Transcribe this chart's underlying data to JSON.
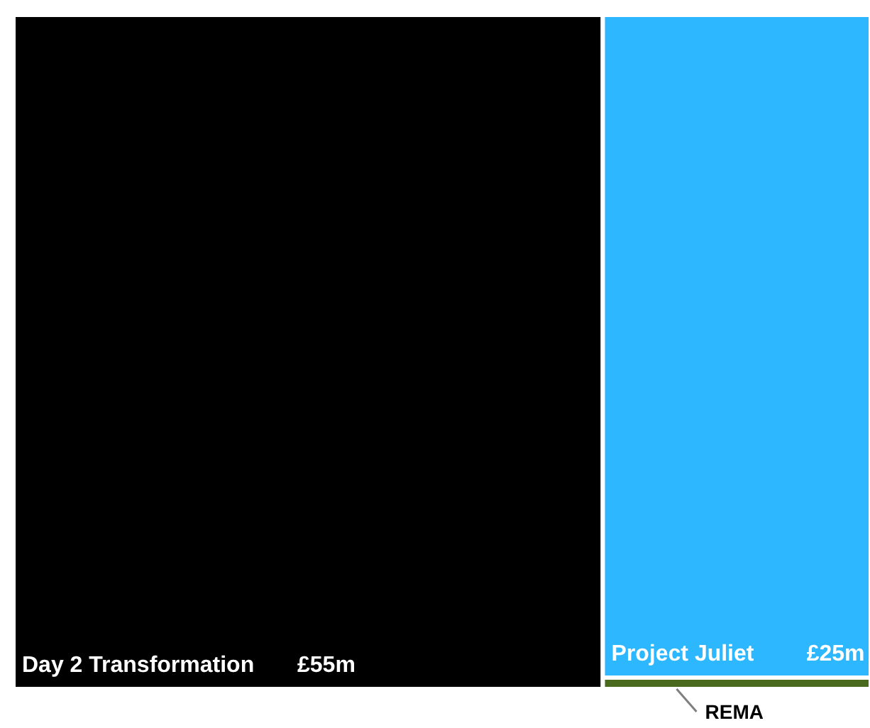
{
  "chart_data": {
    "type": "other",
    "categories": [
      "Day 2 Transformation",
      "Project Juliet",
      "REMA"
    ],
    "values": [
      55,
      25,
      null
    ],
    "value_labels": [
      "£55m",
      "£25m",
      null
    ],
    "colors": [
      "#000000",
      "#2db7ff",
      "#4a6a1e"
    ]
  }
}
